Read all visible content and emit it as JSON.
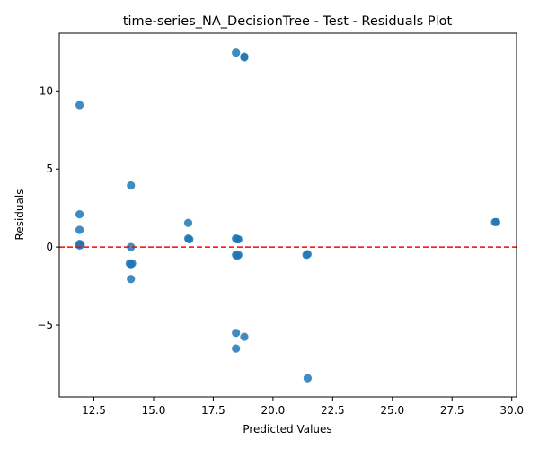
{
  "chart_data": {
    "type": "scatter",
    "title": "time-series_NA_DecisionTree - Test - Residuals Plot",
    "xlabel": "Predicted Values",
    "ylabel": "Residuals",
    "xlim": [
      11.05,
      30.2
    ],
    "ylim": [
      -9.6,
      13.7
    ],
    "xticks": [
      12.5,
      15.0,
      17.5,
      20.0,
      22.5,
      25.0,
      27.5,
      30.0
    ],
    "xtick_labels": [
      "12.5",
      "15.0",
      "17.5",
      "20.0",
      "22.5",
      "25.0",
      "27.5",
      "30.0"
    ],
    "yticks": [
      -5,
      0,
      5,
      10
    ],
    "ytick_labels": [
      "−5",
      "0",
      "5",
      "10"
    ],
    "grid": false,
    "reference_line": {
      "y": 0,
      "style": "dashed",
      "color": "#ff0000"
    },
    "point_color": "#1f77b4",
    "points": [
      {
        "x": 18.45,
        "y": 12.45
      },
      {
        "x": 18.8,
        "y": 12.2
      },
      {
        "x": 18.8,
        "y": 12.15
      },
      {
        "x": 11.9,
        "y": 9.1
      },
      {
        "x": 14.05,
        "y": 3.95
      },
      {
        "x": 11.9,
        "y": 2.1
      },
      {
        "x": 16.45,
        "y": 1.55
      },
      {
        "x": 29.3,
        "y": 1.6
      },
      {
        "x": 29.35,
        "y": 1.6
      },
      {
        "x": 11.9,
        "y": 1.1
      },
      {
        "x": 16.45,
        "y": 0.55
      },
      {
        "x": 16.5,
        "y": 0.5
      },
      {
        "x": 18.45,
        "y": 0.55
      },
      {
        "x": 18.5,
        "y": 0.5
      },
      {
        "x": 18.55,
        "y": 0.5
      },
      {
        "x": 11.9,
        "y": 0.2
      },
      {
        "x": 11.9,
        "y": 0.1
      },
      {
        "x": 11.95,
        "y": 0.15
      },
      {
        "x": 14.05,
        "y": 0.0
      },
      {
        "x": 21.45,
        "y": -0.45
      },
      {
        "x": 21.4,
        "y": -0.5
      },
      {
        "x": 18.45,
        "y": -0.5
      },
      {
        "x": 18.5,
        "y": -0.55
      },
      {
        "x": 18.55,
        "y": -0.5
      },
      {
        "x": 14.0,
        "y": -1.05
      },
      {
        "x": 14.05,
        "y": -1.1
      },
      {
        "x": 14.1,
        "y": -1.05
      },
      {
        "x": 14.05,
        "y": -2.05
      },
      {
        "x": 18.45,
        "y": -5.5
      },
      {
        "x": 18.8,
        "y": -5.75
      },
      {
        "x": 18.45,
        "y": -6.5
      },
      {
        "x": 21.45,
        "y": -8.4
      }
    ]
  }
}
